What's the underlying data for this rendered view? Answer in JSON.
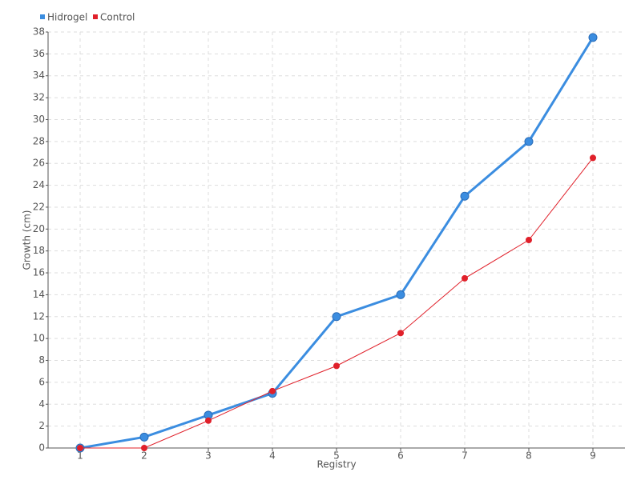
{
  "chart_data": {
    "type": "line",
    "x_label": "Registry",
    "y_label": "Growth (cm)",
    "categories": [
      "1",
      "2",
      "3",
      "4",
      "5",
      "6",
      "7",
      "8",
      "9"
    ],
    "series": [
      {
        "name": "Hidrogel",
        "color": "#3b8de0",
        "values": [
          0,
          1,
          3,
          5,
          12,
          14,
          23,
          28,
          37.5
        ]
      },
      {
        "name": "Control",
        "color": "#e0202a",
        "values": [
          0,
          0,
          2.5,
          5.2,
          7.5,
          10.5,
          15.5,
          19,
          26.5
        ]
      }
    ],
    "ylim": [
      0,
      38
    ],
    "yticks": [
      0,
      2,
      4,
      6,
      8,
      10,
      12,
      14,
      16,
      18,
      20,
      22,
      24,
      26,
      28,
      30,
      32,
      34,
      36,
      38
    ],
    "grid": true,
    "legend": "top-left"
  }
}
